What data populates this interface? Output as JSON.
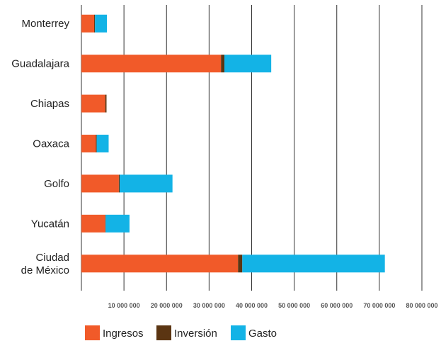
{
  "chart_data": {
    "type": "bar",
    "orientation": "horizontal",
    "stacked": true,
    "title": "",
    "xlabel": "",
    "ylabel": "",
    "categories": [
      "Monterrey",
      "Guadalajara",
      "Chiapas",
      "Oaxaca",
      "Golfo",
      "Yucatán",
      "Ciudad de México"
    ],
    "series": [
      {
        "name": "Ingresos",
        "color": "#f15a29",
        "values": [
          3000000,
          32800000,
          5600000,
          3400000,
          8800000,
          5600000,
          36800000
        ]
      },
      {
        "name": "Inversión",
        "color": "#5b3512",
        "values": [
          200000,
          800000,
          300000,
          200000,
          200000,
          100000,
          1000000
        ]
      },
      {
        "name": "Gasto",
        "color": "#13b3e6",
        "values": [
          2800000,
          11000000,
          0,
          2800000,
          12400000,
          5600000,
          33500000
        ]
      }
    ],
    "xlim": [
      0,
      80000000
    ],
    "xticks": [
      10000000,
      20000000,
      30000000,
      40000000,
      50000000,
      60000000,
      70000000,
      80000000
    ],
    "xtick_labels": [
      "10 000 000",
      "20 000 000",
      "30 000 000",
      "40 000 000",
      "50 000 000",
      "60 000 000",
      "70 000 000",
      "80 000 000"
    ],
    "grid": "vertical",
    "legend": "bottom"
  }
}
